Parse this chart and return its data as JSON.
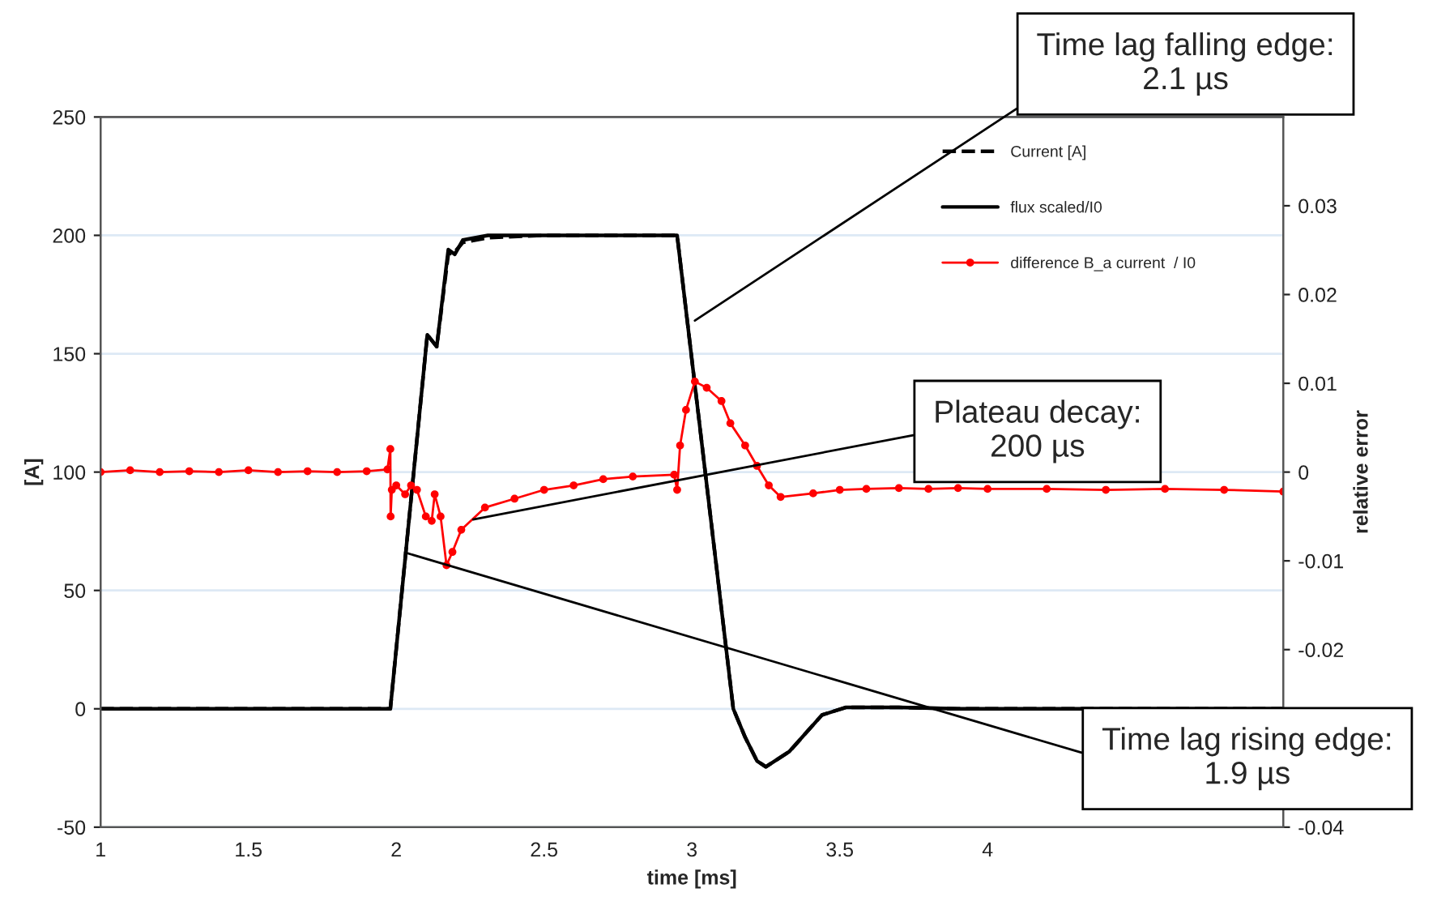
{
  "chart_data": {
    "type": "line",
    "xlabel": "time [ms]",
    "ylabel": "[A]",
    "y2label": "relative error",
    "xlim": [
      1,
      5
    ],
    "xticks": [
      1,
      1.5,
      2,
      2.5,
      3,
      3.5,
      4
    ],
    "ylim": [
      -50,
      250
    ],
    "yticks": [
      -50,
      0,
      50,
      100,
      150,
      200,
      250
    ],
    "y2lim": [
      -0.04,
      0.04
    ],
    "y2ticks": [
      -0.04,
      {
        "value": -0.03,
        "label": null
      },
      -0.02,
      -0.01,
      0,
      0.01,
      0.02,
      0.03
    ],
    "grid": "y",
    "legend": "top right",
    "series": [
      {
        "name": "Current [A]",
        "color": "#000000",
        "line_style": "dashed",
        "marker": "none",
        "x": [
          1,
          1.98,
          2.105,
          2.137,
          2.176,
          2.198,
          2.225,
          2.31,
          2.5,
          2.95,
          3.14,
          3.18,
          3.22,
          3.25,
          3.33,
          3.44,
          3.52,
          3.7,
          3.9,
          5
        ],
        "values": [
          0,
          0,
          158,
          153,
          192,
          193,
          197,
          199,
          200,
          200,
          0,
          -12,
          -22,
          -24.5,
          -18,
          -2.6,
          0.6,
          0.6,
          0,
          0
        ]
      },
      {
        "name": "flux scaled/I0",
        "color": "#000000",
        "line_style": "solid",
        "marker": "none",
        "x": [
          1,
          1.98,
          2.105,
          2.137,
          2.176,
          2.198,
          2.225,
          2.31,
          2.5,
          2.95,
          3.14,
          3.18,
          3.22,
          3.25,
          3.33,
          3.44,
          3.52,
          3.7,
          3.9,
          5
        ],
        "values": [
          0,
          0,
          158,
          153,
          194,
          192,
          198,
          200,
          200,
          200,
          0,
          -12,
          -22,
          -24.5,
          -18,
          -2.6,
          0.6,
          0.6,
          0,
          0
        ]
      },
      {
        "name": "difference B_a current  / I0",
        "color": "#ff0000",
        "line_style": "solid",
        "marker": "circle",
        "axis": "y2",
        "x": [
          1,
          1.1,
          1.2,
          1.3,
          1.4,
          1.5,
          1.6,
          1.7,
          1.8,
          1.9,
          1.97,
          1.98,
          1.981,
          1.985,
          2.0,
          2.03,
          2.05,
          2.07,
          2.1,
          2.12,
          2.13,
          2.15,
          2.17,
          2.19,
          2.22,
          2.3,
          2.4,
          2.5,
          2.6,
          2.7,
          2.8,
          2.94,
          2.95,
          2.96,
          2.98,
          3.01,
          3.05,
          3.1,
          3.13,
          3.18,
          3.22,
          3.26,
          3.3,
          3.41,
          3.5,
          3.59,
          3.7,
          3.8,
          3.9,
          4.0,
          4.2,
          4.4,
          4.6,
          4.8,
          5.0
        ],
        "values": [
          0,
          0.0002,
          0,
          0.0001,
          0,
          0.0002,
          0,
          0.0001,
          0,
          0.0001,
          0.0003,
          0.0026,
          -0.005,
          -0.002,
          -0.0015,
          -0.0025,
          -0.0015,
          -0.002,
          -0.005,
          -0.0055,
          -0.0025,
          -0.005,
          -0.0105,
          -0.009,
          -0.0065,
          -0.004,
          -0.003,
          -0.002,
          -0.0015,
          -0.0008,
          -0.0005,
          -0.0003,
          -0.002,
          0.003,
          0.007,
          0.0102,
          0.0095,
          0.008,
          0.0055,
          0.003,
          0.0007,
          -0.0015,
          -0.0028,
          -0.0024,
          -0.002,
          -0.0019,
          -0.0018,
          -0.0019,
          -0.0018,
          -0.0019,
          -0.0019,
          -0.002,
          -0.0019,
          -0.002,
          -0.0022
        ]
      }
    ],
    "annotations": [
      {
        "text": "Time lag falling edge:\n2.1 µs",
        "x": 3.01,
        "y": 164
      },
      {
        "text": "Plateau decay:\n200 µs",
        "x": 2.26,
        "y": 80
      },
      {
        "text": "Time lag rising edge:\n1.9 µs",
        "x": 2.03,
        "y": 66
      }
    ]
  }
}
